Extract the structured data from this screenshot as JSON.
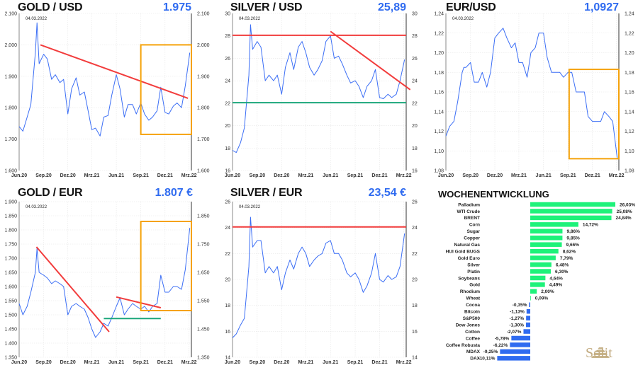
{
  "stamp_date": "04.03.2022",
  "x_tick_labels": [
    "Jun.20",
    "Sep.20",
    "Dez.20",
    "Mrz.21",
    "Jun.21",
    "Sep.21",
    "Dez.21",
    "Mrz.22"
  ],
  "x_tick_dates": [
    "2020-06-01",
    "2020-09-01",
    "2020-12-01",
    "2021-03-01",
    "2021-06-01",
    "2021-09-01",
    "2021-12-01",
    "2022-03-01"
  ],
  "xlim": [
    "2020-06-01",
    "2022-03-10"
  ],
  "dates": [
    "2020-06-01",
    "2020-06-15",
    "2020-07-01",
    "2020-07-15",
    "2020-08-01",
    "2020-08-07",
    "2020-08-15",
    "2020-09-01",
    "2020-09-15",
    "2020-10-01",
    "2020-10-15",
    "2020-11-01",
    "2020-11-15",
    "2020-12-01",
    "2020-12-15",
    "2021-01-01",
    "2021-01-15",
    "2021-02-01",
    "2021-02-15",
    "2021-03-01",
    "2021-03-15",
    "2021-04-01",
    "2021-04-15",
    "2021-05-01",
    "2021-05-15",
    "2021-06-01",
    "2021-06-15",
    "2021-07-01",
    "2021-07-15",
    "2021-08-01",
    "2021-08-15",
    "2021-09-01",
    "2021-09-15",
    "2021-10-01",
    "2021-10-15",
    "2021-11-01",
    "2021-11-15",
    "2021-12-01",
    "2021-12-15",
    "2022-01-01",
    "2022-01-15",
    "2022-02-01",
    "2022-02-15",
    "2022-03-04"
  ],
  "colors": {
    "line": "#3b6ef5",
    "trend_red": "#f23c3c",
    "support_green": "#1aa67a",
    "box": "#f5a20a",
    "value": "#2f6bf0",
    "bar_pos": "#1ef27a",
    "bar_neg": "#2f6bf0"
  },
  "chart_data": [
    {
      "type": "line",
      "title": "GOLD / USD",
      "value_label": "1.975",
      "ylim": [
        1600,
        2100
      ],
      "y_ticks_left": [
        "1.600",
        "1.700",
        "1.800",
        "1.900",
        "2.000",
        "2.100"
      ],
      "y_tick_values_left": [
        1600,
        1700,
        1800,
        1900,
        2000,
        2100
      ],
      "y_ticks_right": [
        "1.600",
        "1.700",
        "1.800",
        "1.900",
        "2.000",
        "2.100"
      ],
      "y_tick_values_right": [
        1600,
        1700,
        1800,
        1900,
        2000,
        2100
      ],
      "y": [
        1740,
        1725,
        1770,
        1810,
        1975,
        2070,
        1940,
        1970,
        1955,
        1890,
        1905,
        1880,
        1890,
        1780,
        1860,
        1895,
        1840,
        1850,
        1790,
        1730,
        1735,
        1710,
        1770,
        1775,
        1840,
        1905,
        1860,
        1770,
        1810,
        1810,
        1780,
        1815,
        1780,
        1760,
        1770,
        1790,
        1865,
        1785,
        1780,
        1805,
        1815,
        1800,
        1870,
        1975
      ],
      "lines": [
        {
          "color": "trend_red",
          "from": [
            "2020-08-20",
            2000
          ],
          "to": [
            "2022-02-25",
            1830
          ]
        }
      ],
      "boxes": [
        {
          "x": [
            "2021-09-01",
            "2022-03-10"
          ],
          "y": [
            1715,
            2000
          ]
        }
      ]
    },
    {
      "type": "line",
      "title": "SILVER / USD",
      "value_label": "25,89",
      "ylim": [
        16,
        30
      ],
      "y_ticks_left": [
        "16",
        "18",
        "20",
        "22",
        "24",
        "26",
        "28",
        "30"
      ],
      "y_tick_values_left": [
        16,
        18,
        20,
        22,
        24,
        26,
        28,
        30
      ],
      "y_ticks_right": [
        "16",
        "18",
        "20",
        "22",
        "24",
        "26",
        "28",
        "30"
      ],
      "y_tick_values_right": [
        16,
        18,
        20,
        22,
        24,
        26,
        28,
        30
      ],
      "y": [
        17.8,
        17.6,
        18.5,
        19.8,
        24.5,
        29.0,
        26.8,
        27.5,
        27.0,
        24.0,
        24.5,
        24.0,
        24.5,
        22.8,
        25.2,
        26.5,
        25.0,
        27.0,
        27.5,
        26.5,
        25.2,
        24.5,
        25.0,
        25.8,
        27.5,
        28.0,
        26.0,
        26.2,
        25.5,
        24.5,
        23.8,
        24.0,
        23.5,
        22.5,
        23.5,
        24.0,
        25.0,
        22.5,
        22.4,
        22.8,
        22.5,
        22.8,
        24.0,
        25.89
      ],
      "lines": [
        {
          "color": "trend_red",
          "from": [
            "2020-06-01",
            28.05
          ],
          "to": [
            "2022-03-10",
            28.05
          ]
        },
        {
          "color": "trend_red",
          "from": [
            "2021-06-01",
            28.4
          ],
          "to": [
            "2022-03-25",
            23.2
          ]
        },
        {
          "color": "support_green",
          "from": [
            "2020-06-01",
            22.05
          ],
          "to": [
            "2022-03-10",
            22.05
          ]
        }
      ],
      "boxes": []
    },
    {
      "type": "line",
      "title": "EUR/USD",
      "value_label": "1,0927",
      "ylim": [
        1.08,
        1.24
      ],
      "y_ticks_left": [
        "1,08",
        "1,10",
        "1,12",
        "1,14",
        "1,16",
        "1,18",
        "1,20",
        "1,22",
        "1,24"
      ],
      "y_tick_values_left": [
        1.08,
        1.1,
        1.12,
        1.14,
        1.16,
        1.18,
        1.2,
        1.22,
        1.24
      ],
      "y_ticks_right": [
        "1,08",
        "1,10",
        "1,12",
        "1,14",
        "1,16",
        "1,18",
        "1,20",
        "1,22",
        "1,24"
      ],
      "y_tick_values_right": [
        1.08,
        1.1,
        1.12,
        1.14,
        1.16,
        1.18,
        1.2,
        1.22,
        1.24
      ],
      "y": [
        1.115,
        1.125,
        1.13,
        1.15,
        1.18,
        1.185,
        1.185,
        1.19,
        1.17,
        1.17,
        1.18,
        1.165,
        1.18,
        1.215,
        1.22,
        1.225,
        1.215,
        1.205,
        1.21,
        1.19,
        1.19,
        1.175,
        1.2,
        1.205,
        1.22,
        1.22,
        1.195,
        1.18,
        1.18,
        1.18,
        1.175,
        1.18,
        1.18,
        1.16,
        1.16,
        1.16,
        1.135,
        1.13,
        1.13,
        1.13,
        1.14,
        1.135,
        1.13,
        1.0927
      ],
      "lines": [],
      "boxes": [
        {
          "x": [
            "2021-09-05",
            "2022-03-10"
          ],
          "y": [
            1.092,
            1.183
          ]
        }
      ]
    },
    {
      "type": "line",
      "title": "GOLD / EUR",
      "value_label": "1.807 €",
      "ylim": [
        1350,
        1900
      ],
      "y_ticks_left": [
        "1.350",
        "1.400",
        "1.450",
        "1.500",
        "1.550",
        "1.600",
        "1.650",
        "1.700",
        "1.750",
        "1.800",
        "1.850",
        "1.900"
      ],
      "y_tick_values_left": [
        1350,
        1400,
        1450,
        1500,
        1550,
        1600,
        1650,
        1700,
        1750,
        1800,
        1850,
        1900
      ],
      "y_ticks_right": [
        "1.350",
        "1.450",
        "1.550",
        "1.650",
        "1.750",
        "1.850"
      ],
      "y_tick_values_right": [
        1350,
        1450,
        1550,
        1650,
        1750,
        1850
      ],
      "y": [
        1540,
        1500,
        1530,
        1580,
        1650,
        1735,
        1650,
        1640,
        1630,
        1610,
        1620,
        1610,
        1600,
        1500,
        1530,
        1540,
        1530,
        1520,
        1490,
        1450,
        1420,
        1440,
        1470,
        1460,
        1490,
        1530,
        1560,
        1500,
        1520,
        1540,
        1530,
        1520,
        1530,
        1510,
        1530,
        1540,
        1640,
        1580,
        1580,
        1600,
        1600,
        1590,
        1660,
        1807
      ],
      "lines": [
        {
          "color": "trend_red",
          "from": [
            "2020-08-05",
            1740
          ],
          "to": [
            "2021-05-05",
            1440
          ]
        },
        {
          "color": "trend_red",
          "from": [
            "2021-06-01",
            1563
          ],
          "to": [
            "2021-11-15",
            1525
          ]
        },
        {
          "color": "support_green",
          "from": [
            "2021-04-15",
            1487
          ],
          "to": [
            "2021-11-15",
            1487
          ]
        }
      ],
      "boxes": [
        {
          "x": [
            "2021-09-01",
            "2022-03-10"
          ],
          "y": [
            1515,
            1830
          ]
        }
      ]
    },
    {
      "type": "line",
      "title": "SILVER / EUR",
      "value_label": "23,54 €",
      "ylim": [
        14,
        26
      ],
      "y_ticks_left": [
        "14",
        "16",
        "18",
        "20",
        "22",
        "24",
        "26"
      ],
      "y_tick_values_left": [
        14,
        16,
        18,
        20,
        22,
        24,
        26
      ],
      "y_ticks_right": [
        "14",
        "16",
        "18",
        "20",
        "22",
        "24",
        "26"
      ],
      "y_tick_values_right": [
        14,
        16,
        18,
        20,
        22,
        24,
        26
      ],
      "y": [
        15.5,
        15.8,
        16.5,
        17.0,
        21.0,
        24.8,
        22.5,
        23.0,
        23.0,
        20.5,
        21.0,
        20.5,
        21.0,
        19.2,
        20.5,
        21.5,
        20.8,
        22.0,
        22.5,
        22.0,
        21.0,
        21.5,
        21.8,
        22.0,
        22.8,
        23.0,
        22.0,
        22.0,
        21.5,
        20.5,
        20.2,
        20.5,
        20.0,
        19.0,
        19.5,
        20.5,
        22.0,
        20.0,
        19.8,
        20.3,
        20.0,
        20.2,
        21.0,
        23.54
      ],
      "lines": [
        {
          "color": "trend_red",
          "from": [
            "2020-06-01",
            24.05
          ],
          "to": [
            "2022-03-10",
            24.05
          ]
        }
      ],
      "boxes": []
    },
    {
      "type": "bar",
      "title": "WOCHENENTWICKLUNG",
      "orientation": "horizontal",
      "categories": [
        "Palladium",
        "WTI Crude",
        "BRENT",
        "Corn",
        "Sugar",
        "Copper",
        "Natural Gas",
        "HUI Gold BUGS",
        "Gold Euro",
        "Silver",
        "Platin",
        "Soybeans",
        "Gold",
        "Rhodium",
        "Wheat",
        "Cocoa",
        "Bitcoin",
        "S&P500",
        "Dow Jones",
        "Cotton",
        "Coffee",
        "Coffee Robusta",
        "MDAX",
        "DAX"
      ],
      "values": [
        26.03,
        25.08,
        24.84,
        14.72,
        9.86,
        9.85,
        9.66,
        8.62,
        7.79,
        6.48,
        6.3,
        4.64,
        4.49,
        2.0,
        0.09,
        -0.35,
        -1.13,
        -1.27,
        -1.3,
        -2.07,
        -5.78,
        -6.22,
        -9.25,
        -10.11
      ],
      "value_labels": [
        "26,03%",
        "25,08%",
        "24,84%",
        "14,72%",
        "9,86%",
        "9,85%",
        "9,66%",
        "8,62%",
        "7,79%",
        "6,48%",
        "6,30%",
        "4,64%",
        "4,49%",
        "2,00%",
        "0,09%",
        "-0,35%",
        "-1,13%",
        "-1,27%",
        "-1,30%",
        "-2,07%",
        "-5,78%",
        "-6,22%",
        "-9,25%",
        "-10,11%"
      ]
    }
  ],
  "logo": {
    "text": "Solit"
  }
}
